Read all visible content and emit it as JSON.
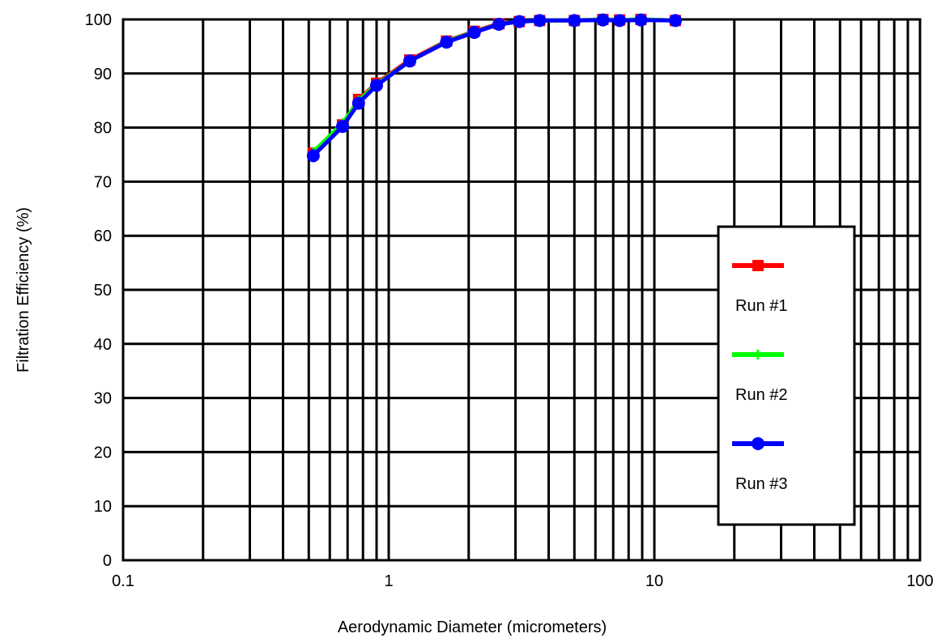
{
  "chart_data": {
    "type": "line",
    "title": "",
    "xlabel": "Aerodynamic Diameter (micrometers)",
    "ylabel": "Filtration Efficiency (%)",
    "x_scale": "log",
    "xlim": [
      0.1,
      100
    ],
    "ylim": [
      0,
      100
    ],
    "x_ticks": [
      "0.1",
      "1",
      "10",
      "100"
    ],
    "y_ticks": [
      "0",
      "10",
      "20",
      "30",
      "40",
      "50",
      "60",
      "70",
      "80",
      "90",
      "100"
    ],
    "grid": true,
    "legend_position": "right",
    "series": [
      {
        "name": "Run #1",
        "color": "#ff0000",
        "marker": "square",
        "x": [
          0.52,
          0.67,
          0.77,
          0.9,
          1.2,
          1.65,
          2.1,
          2.6,
          3.1,
          3.7,
          5.0,
          6.4,
          7.4,
          8.9,
          12.0
        ],
        "y": [
          75.3,
          80.5,
          85.2,
          88.2,
          92.5,
          96.0,
          97.8,
          99.2,
          99.6,
          99.8,
          99.8,
          100.0,
          99.9,
          100.0,
          99.8
        ]
      },
      {
        "name": "Run #2",
        "color": "#00ff00",
        "marker": "plus",
        "x": [
          0.52,
          0.67,
          0.77,
          0.9,
          1.2,
          1.65,
          2.1,
          2.6,
          3.1,
          3.7,
          5.0,
          6.4,
          7.4,
          8.9,
          12.0
        ],
        "y": [
          75.5,
          80.8,
          85.0,
          88.0,
          92.3,
          95.9,
          97.7,
          99.1,
          99.6,
          99.8,
          99.8,
          100.0,
          99.9,
          100.0,
          99.8
        ]
      },
      {
        "name": "Run #3",
        "color": "#0000ff",
        "marker": "circle",
        "x": [
          0.52,
          0.67,
          0.77,
          0.9,
          1.2,
          1.65,
          2.1,
          2.6,
          3.1,
          3.7,
          5.0,
          6.4,
          7.4,
          8.9,
          12.0
        ],
        "y": [
          74.8,
          80.2,
          84.5,
          87.8,
          92.3,
          95.8,
          97.6,
          99.1,
          99.6,
          99.8,
          99.8,
          99.9,
          99.8,
          99.9,
          99.8
        ]
      }
    ]
  }
}
